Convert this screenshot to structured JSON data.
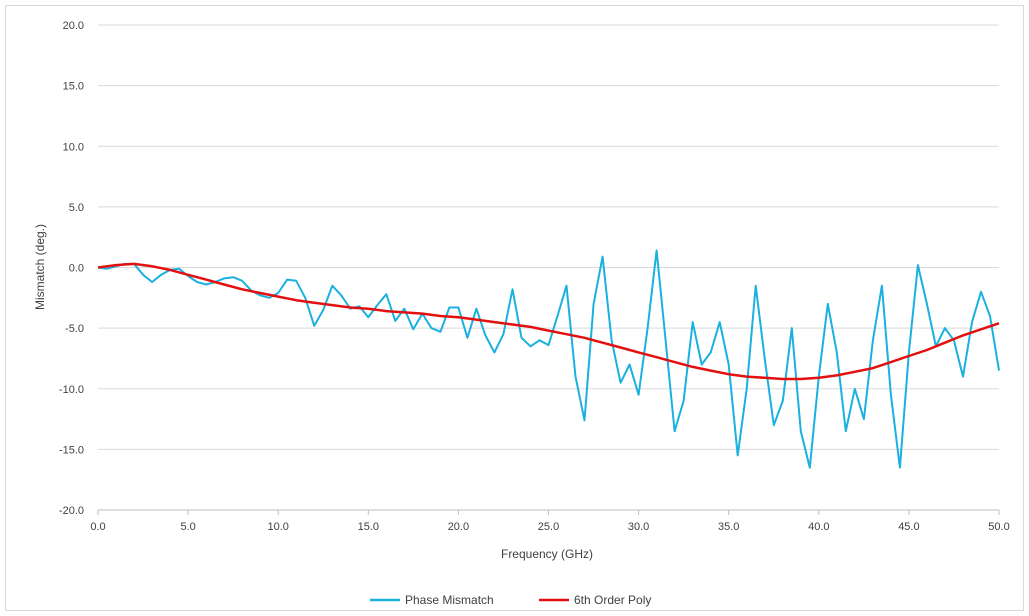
{
  "chart_data": {
    "type": "line",
    "title": "",
    "xlabel": "Frequency (GHz)",
    "ylabel": "Mismatch (deg.)",
    "xlim": [
      0,
      50
    ],
    "ylim": [
      -20,
      20
    ],
    "x_ticks": [
      "0.0",
      "5.0",
      "10.0",
      "15.0",
      "20.0",
      "25.0",
      "30.0",
      "35.0",
      "40.0",
      "45.0",
      "50.0"
    ],
    "y_ticks": [
      "20.0",
      "15.0",
      "10.0",
      "5.0",
      "0.0",
      "-5.0",
      "-10.0",
      "-15.0",
      "-20.0"
    ],
    "grid": "horizontal",
    "legend_position": "bottom",
    "series": [
      {
        "name": "Phase Mismatch",
        "color": "#1ab0e0",
        "x": [
          0,
          0.5,
          1,
          1.5,
          2,
          2.5,
          3,
          3.5,
          4,
          4.5,
          5,
          5.5,
          6,
          6.5,
          7,
          7.5,
          8,
          8.5,
          9,
          9.5,
          10,
          10.5,
          11,
          11.5,
          12,
          12.5,
          13,
          13.5,
          14,
          14.5,
          15,
          15.5,
          16,
          16.5,
          17,
          17.5,
          18,
          18.5,
          19,
          19.5,
          20,
          20.5,
          21,
          21.5,
          22,
          22.5,
          23,
          23.5,
          24,
          24.5,
          25,
          25.5,
          26,
          26.5,
          27,
          27.5,
          28,
          28.5,
          29,
          29.5,
          30,
          30.5,
          31,
          31.5,
          32,
          32.5,
          33,
          33.5,
          34,
          34.5,
          35,
          35.5,
          36,
          36.5,
          37,
          37.5,
          38,
          38.5,
          39,
          39.5,
          40,
          40.5,
          41,
          41.5,
          42,
          42.5,
          43,
          43.5,
          44,
          44.5,
          45,
          45.5,
          46,
          46.5,
          47,
          47.5,
          48,
          48.5,
          49,
          49.5,
          50
        ],
        "y": [
          0.0,
          -0.1,
          0.1,
          0.3,
          0.3,
          -0.6,
          -1.2,
          -0.6,
          -0.2,
          -0.1,
          -0.7,
          -1.2,
          -1.4,
          -1.2,
          -0.9,
          -0.8,
          -1.1,
          -1.9,
          -2.3,
          -2.5,
          -2.1,
          -1.0,
          -1.1,
          -2.5,
          -4.8,
          -3.5,
          -1.5,
          -2.3,
          -3.4,
          -3.2,
          -4.1,
          -3.1,
          -2.2,
          -4.4,
          -3.4,
          -5.1,
          -3.8,
          -5.0,
          -5.3,
          -3.3,
          -3.3,
          -5.8,
          -3.4,
          -5.6,
          -7.0,
          -5.5,
          -1.8,
          -5.8,
          -6.5,
          -6.0,
          -6.4,
          -4.0,
          -1.5,
          -9.0,
          -12.6,
          -3.0,
          0.9,
          -6.0,
          -9.5,
          -8.0,
          -10.5,
          -5.0,
          1.4,
          -6.0,
          -13.5,
          -11.0,
          -4.5,
          -8.0,
          -7.0,
          -4.5,
          -8.0,
          -15.5,
          -10.0,
          -1.5,
          -7.5,
          -13.0,
          -11.0,
          -5.0,
          -13.5,
          -16.5,
          -9.0,
          -3.0,
          -7.0,
          -13.5,
          -10.0,
          -12.5,
          -6.0,
          -1.5,
          -10.5,
          -16.5,
          -7.0,
          0.2,
          -3.0,
          -6.5,
          -5.0,
          -6.0,
          -9.0,
          -4.5,
          -2.0,
          -4.0,
          -8.5
        ]
      },
      {
        "name": "6th Order Poly",
        "color": "#e31010",
        "x": [
          0,
          1,
          2,
          3,
          4,
          5,
          6,
          7,
          8,
          9,
          10,
          11,
          12,
          13,
          14,
          15,
          16,
          17,
          18,
          19,
          20,
          21,
          22,
          23,
          24,
          25,
          26,
          27,
          28,
          29,
          30,
          31,
          32,
          33,
          34,
          35,
          36,
          37,
          38,
          39,
          40,
          41,
          42,
          43,
          44,
          45,
          46,
          47,
          48,
          49,
          50
        ],
        "y": [
          0.0,
          0.2,
          0.3,
          0.1,
          -0.2,
          -0.6,
          -1.0,
          -1.4,
          -1.8,
          -2.1,
          -2.4,
          -2.7,
          -2.9,
          -3.1,
          -3.3,
          -3.4,
          -3.6,
          -3.7,
          -3.8,
          -4.0,
          -4.1,
          -4.3,
          -4.5,
          -4.7,
          -4.9,
          -5.2,
          -5.5,
          -5.8,
          -6.2,
          -6.6,
          -7.0,
          -7.4,
          -7.8,
          -8.2,
          -8.5,
          -8.8,
          -9.0,
          -9.1,
          -9.2,
          -9.2,
          -9.1,
          -8.9,
          -8.6,
          -8.3,
          -7.8,
          -7.3,
          -6.8,
          -6.2,
          -5.6,
          -5.1,
          -4.6
        ]
      }
    ]
  }
}
